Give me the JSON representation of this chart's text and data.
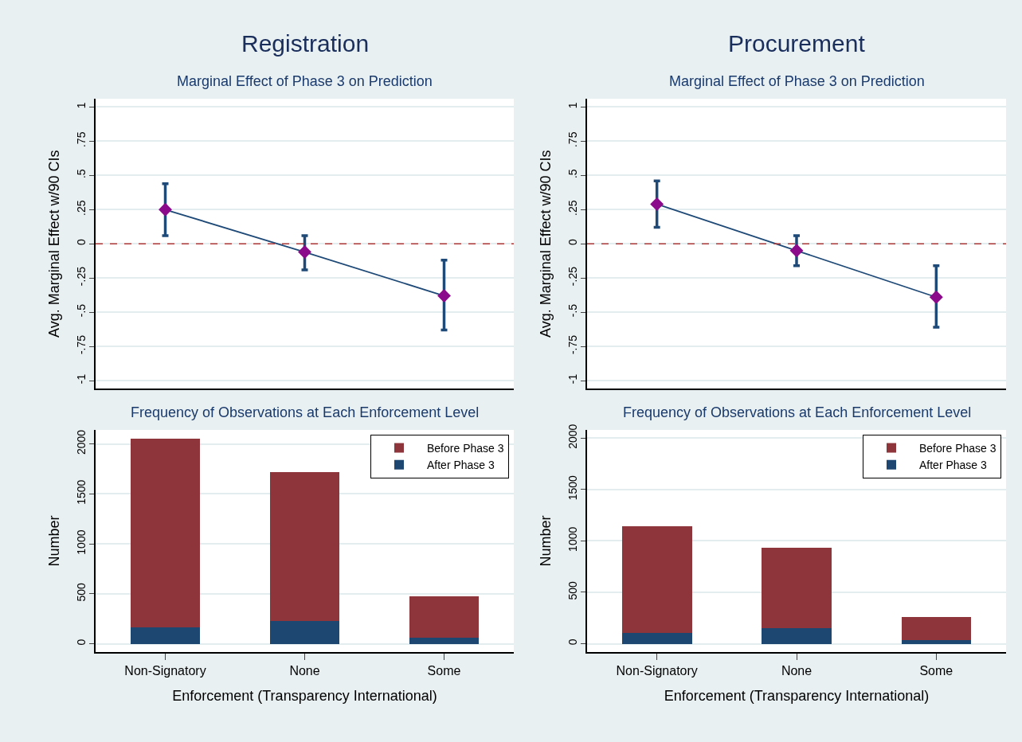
{
  "chart_data": [
    {
      "type": "line",
      "title": "Registration",
      "subtitle": "Marginal Effect of Phase 3 on Prediction",
      "ylabel": "Avg. Marginal Effect w/90 CIs",
      "categories": [
        null,
        null,
        null
      ],
      "series": [
        {
          "type": "line",
          "color": "#1f4a78",
          "marker": "none",
          "values": [
            0.25,
            -0.06,
            -0.38
          ],
          "errors": [
            [
              0.06,
              0.44
            ],
            [
              -0.19,
              0.06
            ],
            [
              -0.63,
              -0.12
            ]
          ]
        },
        {
          "type": "scatter",
          "color": "#8b0a8b",
          "marker": "diamond",
          "values": [
            0.25,
            -0.06,
            -0.38
          ]
        }
      ],
      "ylim": [
        -1.06,
        1.06
      ],
      "yticks": [
        {
          "value": -1,
          "label": "-1"
        },
        {
          "value": -0.75,
          "label": "-.75"
        },
        {
          "value": -0.5,
          "label": "-.5"
        },
        {
          "value": -0.25,
          "label": "-.25"
        },
        0,
        {
          "value": 0.25,
          "label": ".25"
        },
        {
          "value": 0.5,
          "label": ".5"
        },
        {
          "value": 0.75,
          "label": ".75"
        },
        1
      ],
      "ref_lines": [
        {
          "axis": "y",
          "value": 0,
          "color": "#b03a3a",
          "line_style": "dashed"
        }
      ],
      "grid": "y",
      "tick_labels": "y"
    },
    {
      "type": "line",
      "title": "Procurement",
      "subtitle": "Marginal Effect of Phase 3 on Prediction",
      "ylabel": "Avg. Marginal Effect w/90 CIs",
      "categories": [
        null,
        null,
        null
      ],
      "series": [
        {
          "type": "line",
          "color": "#1f4a78",
          "marker": "none",
          "values": [
            0.29,
            -0.05,
            -0.39
          ],
          "errors": [
            [
              0.12,
              0.46
            ],
            [
              -0.16,
              0.06
            ],
            [
              -0.61,
              -0.16
            ]
          ]
        },
        {
          "type": "scatter",
          "color": "#8b0a8b",
          "marker": "diamond",
          "values": [
            0.29,
            -0.05,
            -0.39
          ]
        }
      ],
      "ylim": [
        -1.06,
        1.06
      ],
      "yticks": [
        {
          "value": -1,
          "label": "-1"
        },
        {
          "value": -0.75,
          "label": "-.75"
        },
        {
          "value": -0.5,
          "label": "-.5"
        },
        {
          "value": -0.25,
          "label": "-.25"
        },
        0,
        {
          "value": 0.25,
          "label": ".25"
        },
        {
          "value": 0.5,
          "label": ".5"
        },
        {
          "value": 0.75,
          "label": ".75"
        },
        1
      ],
      "ref_lines": [
        {
          "axis": "y",
          "value": 0,
          "color": "#b03a3a",
          "line_style": "dashed"
        }
      ],
      "grid": "y",
      "tick_labels": "y"
    },
    {
      "type": "bar",
      "title": "Frequency of Observations at Each Enforcement Level",
      "xlabel": "Enforcement (Transparency International)",
      "ylabel": "Number",
      "categories": [
        "Non-Signatory",
        "None",
        "Some"
      ],
      "stacked": true,
      "series": [
        {
          "name": "After Phase 3",
          "color": "#1d4670",
          "values": [
            165,
            230,
            65
          ]
        },
        {
          "name": "Before Phase 3",
          "color": "#8e353c",
          "values": [
            1890,
            1490,
            415
          ]
        }
      ],
      "ylim": [
        -80,
        2140
      ],
      "yticks": [
        0,
        500,
        1000,
        1500,
        2000
      ],
      "grid": "y",
      "legend": "top right"
    },
    {
      "type": "bar",
      "title": "Frequency of Observations at Each Enforcement Level",
      "xlabel": "Enforcement (Transparency International)",
      "ylabel": "Number",
      "categories": [
        "Non-Signatory",
        "None",
        "Some"
      ],
      "stacked": true,
      "series": [
        {
          "name": "After Phase 3",
          "color": "#1d4670",
          "values": [
            105,
            150,
            37
          ]
        },
        {
          "name": "Before Phase 3",
          "color": "#8e353c",
          "values": [
            1035,
            785,
            225
          ]
        }
      ],
      "ylim": [
        -80,
        2080
      ],
      "yticks": [
        0,
        500,
        1000,
        1500,
        2000
      ],
      "grid": "y",
      "legend": "top right"
    }
  ]
}
